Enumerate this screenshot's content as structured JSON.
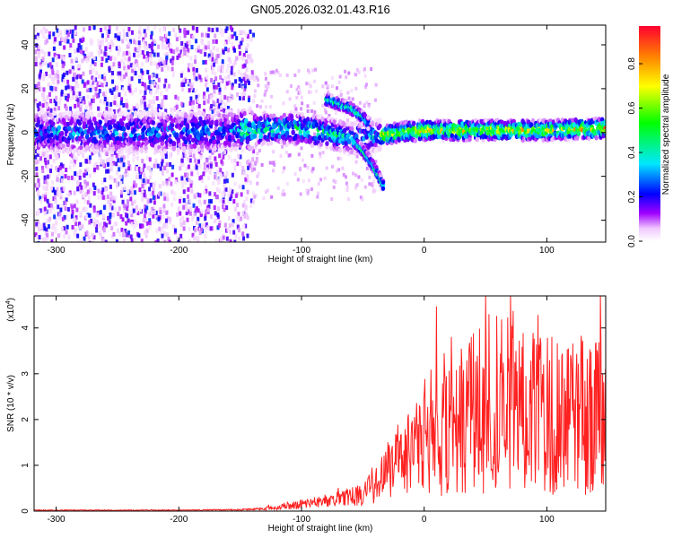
{
  "title": "GN05.2026.032.01.43.R16",
  "chart_data": [
    {
      "type": "heatmap",
      "title": "GN05.2026.032.01.43.R16",
      "xlabel": "Height of straight line (km)",
      "ylabel": "Frequency (Hz)",
      "xlim": [
        -318,
        148
      ],
      "ylim": [
        -50,
        49
      ],
      "xticks": [
        -300,
        -200,
        -100,
        0,
        100
      ],
      "yticks": [
        -40,
        -20,
        0,
        20,
        40
      ],
      "colorbar": {
        "label": "Normalized spectral amplitude",
        "range": [
          0.0,
          0.97
        ],
        "ticks": [
          0.0,
          0.2,
          0.4,
          0.6,
          0.8
        ],
        "colormap": [
          "#ffffff",
          "#e8b8f8",
          "#9000ff",
          "#0000ff",
          "#00e8ff",
          "#00ff00",
          "#ffff00",
          "#ff8000",
          "#ff0000"
        ]
      },
      "ridges": [
        {
          "x": [
            -318,
            -250,
            -200,
            -150,
            -110,
            -80,
            -60,
            -45,
            -35,
            -30,
            -20,
            0,
            50,
            100,
            148
          ],
          "y": [
            0,
            0,
            0,
            1,
            2,
            0,
            -3,
            -2,
            -1,
            -1,
            0,
            1,
            1,
            1,
            2
          ]
        },
        {
          "x": [
            -80,
            -70,
            -60,
            -50,
            -45
          ],
          "y": [
            15,
            13,
            11,
            7,
            4
          ]
        },
        {
          "x": [
            -55,
            -48,
            -42,
            -37,
            -33
          ],
          "y": [
            -5,
            -10,
            -15,
            -20,
            -25
          ]
        }
      ]
    },
    {
      "type": "line",
      "xlabel": "Height of straight line (km)",
      "ylabel": "SNR (10 * v/v)",
      "y_multiplier": "(x10",
      "y_multiplier_exp": "4",
      "y_multiplier_close": ")",
      "xlim": [
        -318,
        148
      ],
      "ylim": [
        0,
        4.7
      ],
      "xticks": [
        -300,
        -200,
        -100,
        0,
        100
      ],
      "yticks": [
        0,
        1,
        2,
        3,
        4
      ],
      "series": [
        {
          "color": "#ff2020",
          "x": [
            -318,
            -250,
            -200,
            -150,
            -130,
            -110,
            -90,
            -70,
            -50,
            -40,
            -30,
            -20,
            -10,
            0,
            10,
            20,
            30,
            40,
            50,
            60,
            70,
            80,
            90,
            100,
            110,
            120,
            130,
            140,
            148
          ],
          "y": [
            0.02,
            0.02,
            0.02,
            0.03,
            0.05,
            0.12,
            0.18,
            0.25,
            0.35,
            0.6,
            0.9,
            1.2,
            1.35,
            1.6,
            1.75,
            1.95,
            2.1,
            2.2,
            2.3,
            2.4,
            2.25,
            2.2,
            2.1,
            2.05,
            2.1,
            2.0,
            2.1,
            2.0,
            2.15
          ]
        }
      ]
    }
  ]
}
